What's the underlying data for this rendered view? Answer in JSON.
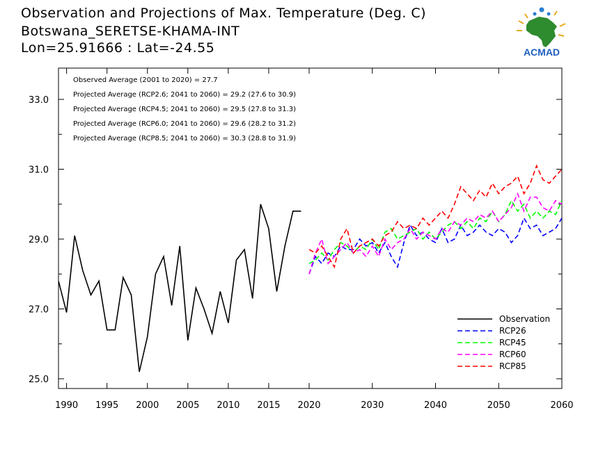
{
  "header": {
    "line1": "Observation and Projections of Max. Temperature (Deg. C)",
    "line2": "Botswana_SERETSE-KHAMA-INT",
    "line3": "Lon=25.91666 : Lat=-24.55"
  },
  "logo": {
    "text": "ACMAD",
    "icon": "africa-map-icon"
  },
  "annotations": [
    "Observed Average (2001 to 2020) = 27.7",
    "Projected Average (RCP2.6; 2041 to 2060) = 29.2 (27.6 to 30.9)",
    "Projected Average (RCP4.5; 2041 to 2060) = 29.5 (27.8 to 31.3)",
    "Projected Average (RCP6.0; 2041 to 2060) = 29.6 (28.2 to 31.2)",
    "Projected Average (RCP8.5; 2041 to 2060) = 30.3 (28.8 to 31.9)"
  ],
  "chart_data": {
    "type": "line",
    "xlim": [
      1989,
      2060
    ],
    "ylim": [
      24.7,
      34.0
    ],
    "xticks": [
      1990,
      1995,
      2000,
      2005,
      2010,
      2015,
      2020,
      2030,
      2040,
      2050,
      2060
    ],
    "yticks_labeled": [
      "25.0",
      "27.0",
      "29.0",
      "31.0",
      "33.0"
    ],
    "yticks_labeled_values": [
      25.0,
      27.0,
      29.0,
      31.0,
      33.0
    ],
    "yticks_minor": [
      26.0,
      28.0,
      30.0,
      32.0
    ],
    "legend_placement": "bottom-right",
    "series": [
      {
        "name": "Observation",
        "color": "#000000",
        "dash": "solid",
        "x": [
          1989,
          1990,
          1991,
          1992,
          1993,
          1994,
          1995,
          1996,
          1997,
          1998,
          1999,
          2000,
          2001,
          2002,
          2003,
          2004,
          2005,
          2006,
          2007,
          2008,
          2009,
          2010,
          2011,
          2012,
          2013,
          2014,
          2015,
          2016,
          2017,
          2018,
          2019
        ],
        "values": [
          27.8,
          26.9,
          29.1,
          28.1,
          27.4,
          27.8,
          26.4,
          26.4,
          27.9,
          27.4,
          25.2,
          26.2,
          28.0,
          28.5,
          27.1,
          28.8,
          26.1,
          27.6,
          27.0,
          26.3,
          27.5,
          26.6,
          28.4,
          28.7,
          27.3,
          30.0,
          29.3,
          27.5,
          28.8,
          29.8,
          29.8
        ]
      },
      {
        "name": "RCP26",
        "color": "#0000ff",
        "dash": "dashed",
        "x": [
          2020,
          2021,
          2022,
          2023,
          2024,
          2025,
          2026,
          2027,
          2028,
          2029,
          2030,
          2031,
          2032,
          2033,
          2034,
          2035,
          2036,
          2037,
          2038,
          2039,
          2040,
          2041,
          2042,
          2043,
          2044,
          2045,
          2046,
          2047,
          2048,
          2049,
          2050,
          2051,
          2052,
          2053,
          2054,
          2055,
          2056,
          2057,
          2058,
          2059,
          2060
        ],
        "values": [
          28.0,
          28.5,
          28.3,
          28.6,
          28.5,
          28.8,
          28.7,
          28.7,
          29.0,
          28.8,
          28.9,
          28.6,
          28.9,
          28.5,
          28.2,
          28.9,
          29.4,
          29.1,
          29.2,
          29.0,
          28.9,
          29.3,
          28.9,
          29.0,
          29.4,
          29.1,
          29.2,
          29.4,
          29.2,
          29.1,
          29.3,
          29.2,
          28.9,
          29.1,
          29.6,
          29.3,
          29.4,
          29.1,
          29.2,
          29.3,
          29.6
        ]
      },
      {
        "name": "RCP45",
        "color": "#00ff00",
        "dash": "dashed",
        "x": [
          2020,
          2021,
          2022,
          2023,
          2024,
          2025,
          2026,
          2027,
          2028,
          2029,
          2030,
          2031,
          2032,
          2033,
          2034,
          2035,
          2036,
          2037,
          2038,
          2039,
          2040,
          2041,
          2042,
          2043,
          2044,
          2045,
          2046,
          2047,
          2048,
          2049,
          2050,
          2051,
          2052,
          2053,
          2054,
          2055,
          2056,
          2057,
          2058,
          2059,
          2060
        ],
        "values": [
          28.3,
          28.4,
          28.6,
          28.4,
          28.7,
          28.9,
          28.8,
          28.6,
          28.8,
          28.7,
          29.0,
          28.7,
          29.2,
          29.3,
          29.0,
          29.1,
          29.2,
          29.3,
          29.0,
          29.2,
          29.0,
          29.2,
          29.4,
          29.5,
          29.3,
          29.5,
          29.3,
          29.6,
          29.5,
          29.8,
          29.5,
          29.7,
          30.1,
          29.8,
          30.0,
          29.6,
          29.8,
          29.6,
          29.8,
          29.7,
          30.1
        ]
      },
      {
        "name": "RCP60",
        "color": "#ff00ff",
        "dash": "dashed",
        "x": [
          2020,
          2021,
          2022,
          2023,
          2024,
          2025,
          2026,
          2027,
          2028,
          2029,
          2030,
          2031,
          2032,
          2033,
          2034,
          2035,
          2036,
          2037,
          2038,
          2039,
          2040,
          2041,
          2042,
          2043,
          2044,
          2045,
          2046,
          2047,
          2048,
          2049,
          2050,
          2051,
          2052,
          2053,
          2054,
          2055,
          2056,
          2057,
          2058,
          2059,
          2060
        ],
        "values": [
          28.0,
          28.6,
          29.0,
          28.3,
          28.5,
          28.7,
          28.9,
          28.6,
          28.7,
          28.5,
          28.8,
          28.5,
          29.0,
          28.7,
          28.9,
          29.0,
          29.3,
          29.0,
          29.2,
          29.1,
          29.0,
          29.3,
          29.2,
          29.5,
          29.4,
          29.6,
          29.5,
          29.7,
          29.6,
          29.8,
          29.5,
          29.7,
          29.9,
          30.3,
          29.8,
          30.2,
          30.2,
          29.9,
          29.8,
          30.1,
          30.0
        ]
      },
      {
        "name": "RCP85",
        "color": "#ff0000",
        "dash": "dashed",
        "x": [
          2020,
          2021,
          2022,
          2023,
          2024,
          2025,
          2026,
          2027,
          2028,
          2029,
          2030,
          2031,
          2032,
          2033,
          2034,
          2035,
          2036,
          2037,
          2038,
          2039,
          2040,
          2041,
          2042,
          2043,
          2044,
          2045,
          2046,
          2047,
          2048,
          2049,
          2050,
          2051,
          2052,
          2053,
          2054,
          2055,
          2056,
          2057,
          2058,
          2059,
          2060
        ],
        "values": [
          28.7,
          28.6,
          28.8,
          28.5,
          28.2,
          29.0,
          29.3,
          28.6,
          28.8,
          28.9,
          29.0,
          28.8,
          29.1,
          29.2,
          29.5,
          29.3,
          29.4,
          29.3,
          29.6,
          29.4,
          29.6,
          29.8,
          29.6,
          30.0,
          30.5,
          30.3,
          30.1,
          30.4,
          30.2,
          30.6,
          30.3,
          30.5,
          30.6,
          30.8,
          30.3,
          30.6,
          31.1,
          30.7,
          30.6,
          30.8,
          31.0
        ]
      }
    ]
  }
}
